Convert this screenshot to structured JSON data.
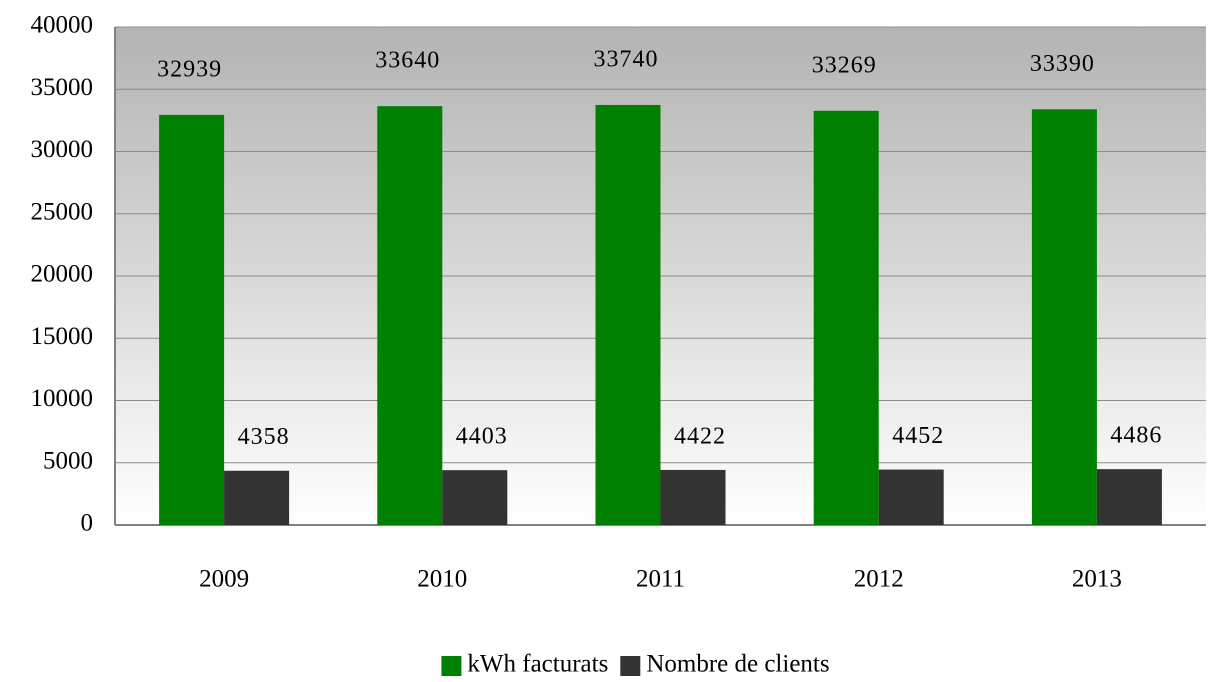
{
  "chart_data": {
    "type": "bar",
    "categories": [
      "2009",
      "2010",
      "2011",
      "2012",
      "2013"
    ],
    "series": [
      {
        "name": "kWh facturats",
        "color": "#008000",
        "values": [
          32939,
          33640,
          33740,
          33269,
          33390
        ]
      },
      {
        "name": "Nombre de clients",
        "color": "#333333",
        "values": [
          4358,
          4403,
          4422,
          4452,
          4486
        ]
      }
    ],
    "ylim": [
      0,
      40000
    ],
    "yticks": [
      0,
      5000,
      10000,
      15000,
      20000,
      25000,
      30000,
      35000,
      40000
    ],
    "grid": true,
    "legend": "bottom"
  }
}
